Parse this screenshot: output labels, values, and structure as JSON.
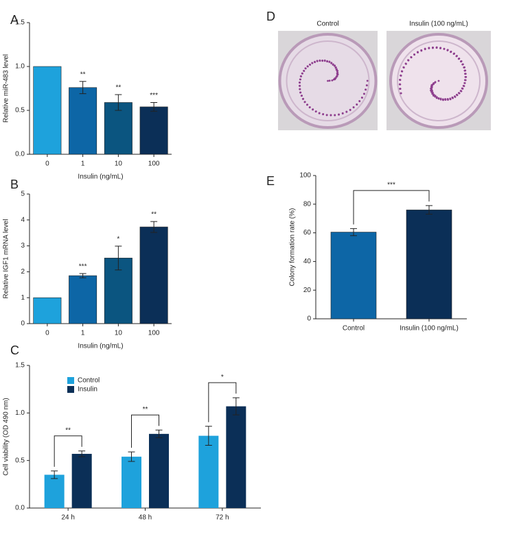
{
  "chart_data": [
    {
      "type": "bar",
      "panel": "A",
      "x_label": "Insulin (ng/mL)",
      "y_label": "Relative miR-483 level",
      "categories": [
        "0",
        "1",
        "10",
        "100"
      ],
      "values": [
        1.0,
        0.76,
        0.59,
        0.54
      ],
      "errors": [
        null,
        0.07,
        0.09,
        0.05
      ],
      "significance": [
        null,
        "**",
        "**",
        "***"
      ],
      "colors": [
        "#1ea2dc",
        "#0d66a6",
        "#0b5580",
        "#0b2f57"
      ],
      "ylim": [
        0,
        1.5
      ],
      "yticks": [
        {
          "value": 0,
          "label": "0.0"
        },
        0.5,
        {
          "value": 1,
          "label": "1.0"
        },
        1.5
      ]
    },
    {
      "type": "bar",
      "panel": "B",
      "x_label": "Insulin (ng/mL)",
      "y_label": "Relative IGF1 mRNA level",
      "categories": [
        "0",
        "1",
        "10",
        "100"
      ],
      "values": [
        1.0,
        1.85,
        2.53,
        3.73
      ],
      "errors": [
        null,
        0.08,
        0.46,
        0.21
      ],
      "significance": [
        null,
        "***",
        "*",
        "**"
      ],
      "colors": [
        "#1ea2dc",
        "#0d66a6",
        "#0b5580",
        "#0b2f57"
      ],
      "ylim": [
        0,
        5
      ],
      "yticks": [
        0,
        1,
        2,
        3,
        4,
        5
      ]
    },
    {
      "type": "grouped_bar",
      "panel": "C",
      "y_label": "Cell viability (OD 490 nm)",
      "categories": [
        "24 h",
        "48 h",
        "72 h"
      ],
      "series": [
        {
          "name": "Control",
          "color": "#1ea2dc",
          "values": [
            0.35,
            0.54,
            0.76
          ],
          "errors": [
            0.04,
            0.05,
            0.1
          ]
        },
        {
          "name": "Insulin",
          "color": "#0b2f57",
          "values": [
            0.57,
            0.78,
            1.07
          ],
          "errors": [
            0.03,
            0.04,
            0.09
          ]
        }
      ],
      "significance": [
        "**",
        "**",
        "*"
      ],
      "legend": "upper left",
      "ylim": [
        0,
        1.5
      ],
      "yticks": [
        {
          "value": 0,
          "label": "0.0"
        },
        0.5,
        {
          "value": 1,
          "label": "1.0"
        },
        1.5
      ]
    },
    {
      "type": "image",
      "panel": "D",
      "labels": [
        "Control",
        "Insulin (100 ng/mL)"
      ]
    },
    {
      "type": "bar",
      "panel": "E",
      "y_label": "Colony formation rate (%)",
      "categories": [
        "Control",
        "Insulin (100 ng/mL)"
      ],
      "values": [
        60.5,
        76
      ],
      "errors": [
        2.5,
        3
      ],
      "colors": [
        "#0d66a6",
        "#0b2f57"
      ],
      "bracket": "***",
      "ylim": [
        0,
        100
      ],
      "yticks": [
        0,
        20,
        40,
        60,
        80,
        100
      ]
    }
  ]
}
